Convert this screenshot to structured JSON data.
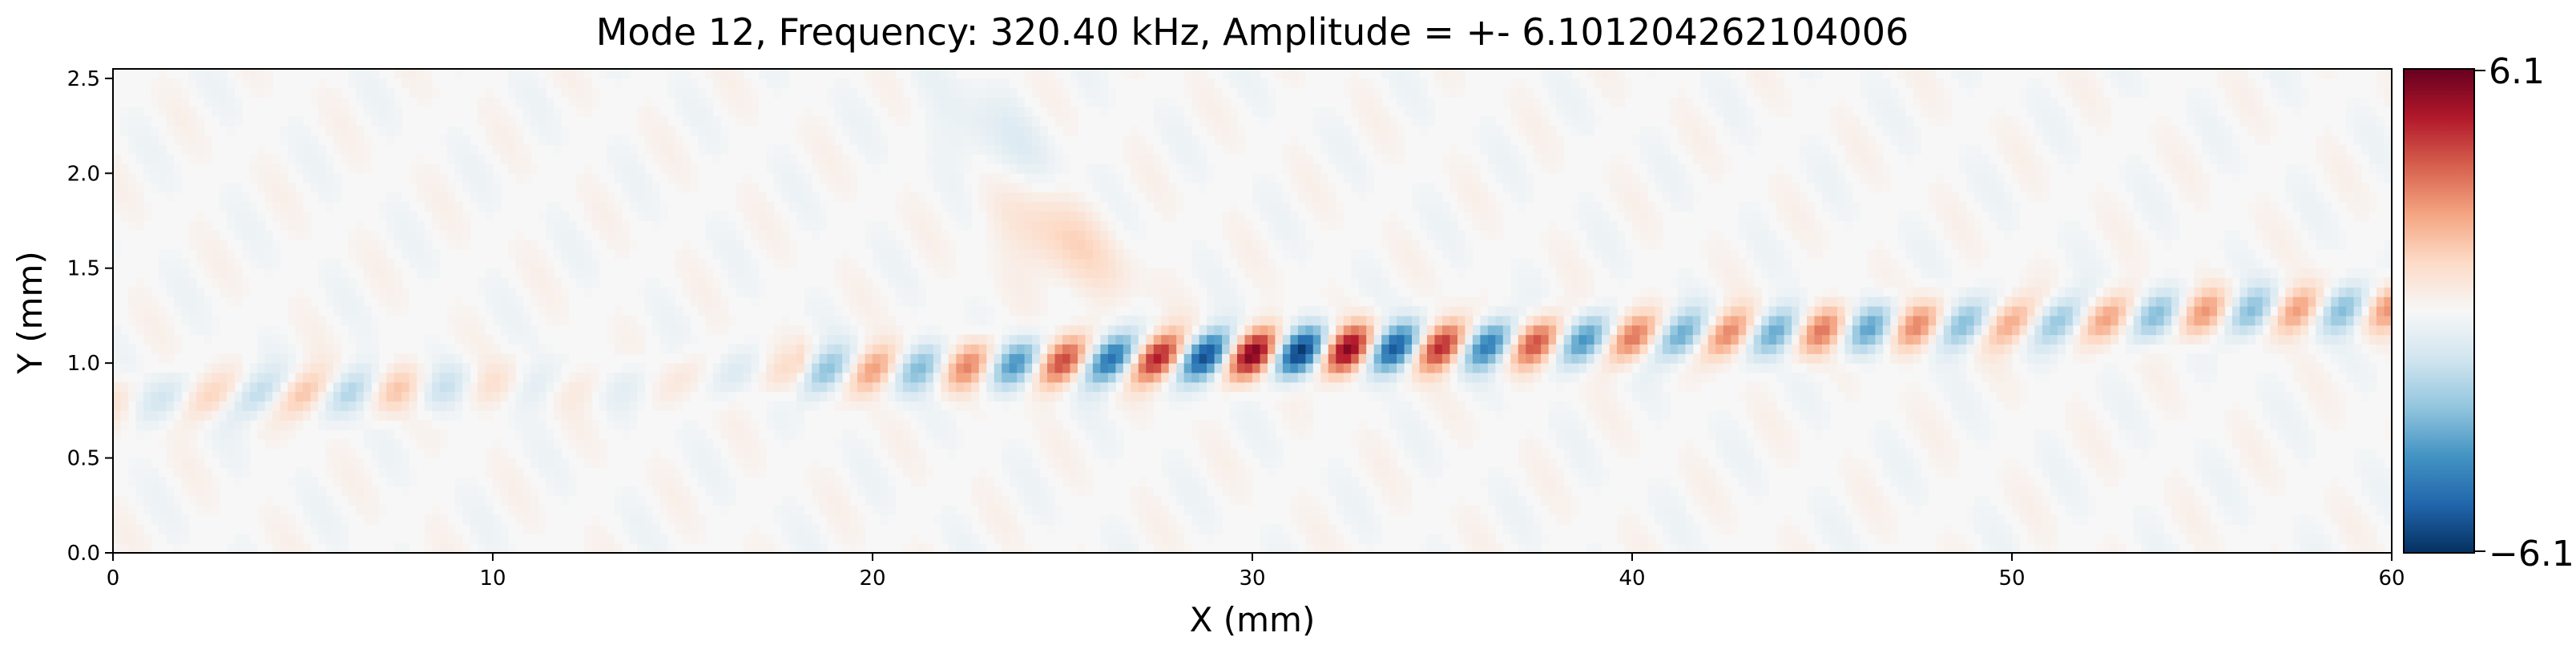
{
  "chart_data": {
    "type": "heatmap",
    "title": "Mode 12, Frequency: 320.40 kHz, Amplitude = +- 6.101204262104006",
    "xlabel": "X (mm)",
    "ylabel": "Y (mm)",
    "xlim": [
      0,
      60
    ],
    "ylim": [
      0,
      2.55
    ],
    "x_ticks": [
      0,
      10,
      20,
      30,
      40,
      50,
      60
    ],
    "x_tick_labels": [
      "0",
      "10",
      "20",
      "30",
      "40",
      "50",
      "60"
    ],
    "y_ticks": [
      0.0,
      0.5,
      1.0,
      1.5,
      2.0,
      2.5
    ],
    "y_tick_labels": [
      "0.0",
      "0.5",
      "1.0",
      "1.5",
      "2.0",
      "2.5"
    ],
    "colormap": "RdBu_r",
    "colormap_stops": [
      "#053061",
      "#2166ac",
      "#4393c3",
      "#92c5de",
      "#d1e5f0",
      "#f7f7f7",
      "#fddbc7",
      "#f4a582",
      "#d6604d",
      "#b2182b",
      "#67001f"
    ],
    "color_range": [
      -6.101204262104006,
      6.101204262104006
    ],
    "colorbar_tick_labels": [
      "6.1",
      "−6.1"
    ],
    "wave": {
      "center_y_at_x0": 0.8,
      "center_y_at_x60": 1.3,
      "wavelength_mm": 2.5,
      "envelope_peak_x": 29.5,
      "peak_amplitude": 6.1
    }
  }
}
